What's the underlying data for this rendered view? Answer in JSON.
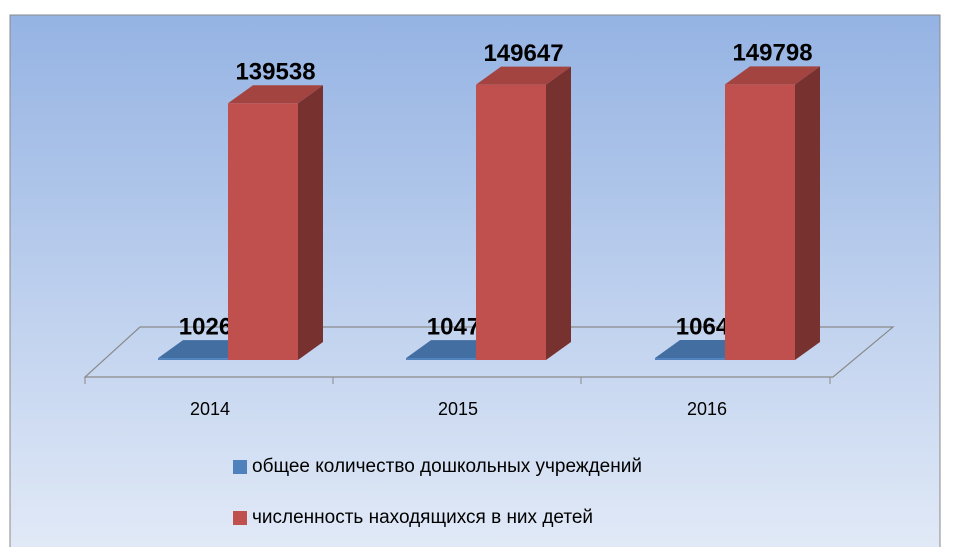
{
  "chart_data": {
    "type": "bar",
    "categories": [
      "2014",
      "2015",
      "2016"
    ],
    "series": [
      {
        "name": "общее количество дошкольных учреждений",
        "color": "#4f81bd",
        "values": [
          1026,
          1047,
          1064
        ]
      },
      {
        "name": "численность находящихся в них детей",
        "color": "#c0504d",
        "values": [
          139538,
          149647,
          149798
        ]
      }
    ],
    "ylim": [
      0,
      150000
    ]
  }
}
